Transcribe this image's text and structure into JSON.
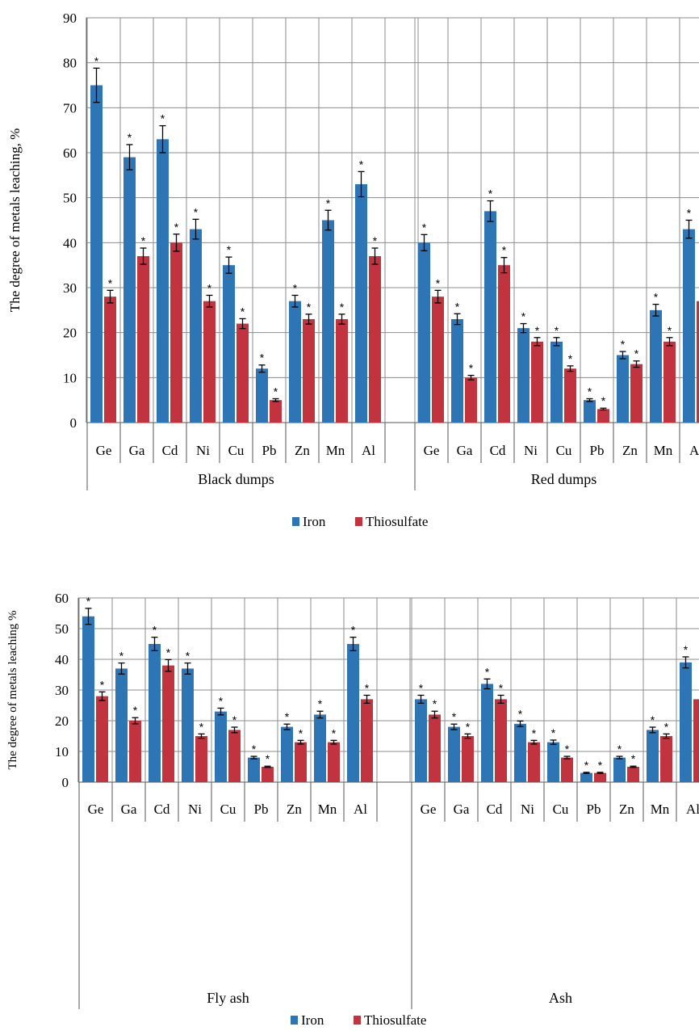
{
  "colors": {
    "iron": "#2e75b6",
    "thiosulfate": "#c0333f",
    "grid": "#8c8c8c",
    "axis": "#555555"
  },
  "chart_data": [
    {
      "type": "bar",
      "ylabel": "The degree of metals leaching, %",
      "ylim": [
        0,
        90
      ],
      "yticks": [
        0,
        10,
        20,
        30,
        40,
        50,
        60,
        70,
        80,
        90
      ],
      "grid": true,
      "legend_position": "bottom",
      "groups": [
        {
          "name": "Black dumps",
          "categories": [
            "Ge",
            "Ga",
            "Cd",
            "Ni",
            "Cu",
            "Pb",
            "Zn",
            "Mn",
            "Al"
          ]
        },
        {
          "name": "Red dumps",
          "categories": [
            "Ge",
            "Ga",
            "Cd",
            "Ni",
            "Cu",
            "Pb",
            "Zn",
            "Mn",
            "Al"
          ]
        }
      ],
      "series": [
        {
          "name": "Iron",
          "values": [
            75,
            59,
            63,
            43,
            35,
            12,
            27,
            45,
            53,
            40,
            23,
            47,
            21,
            18,
            5,
            15,
            25,
            43
          ],
          "errors": [
            3.8,
            2.8,
            3,
            2.2,
            1.8,
            0.8,
            1.3,
            2.2,
            2.8,
            1.8,
            1.2,
            2.3,
            1,
            0.9,
            0.3,
            0.8,
            1.3,
            2
          ]
        },
        {
          "name": "Thiosulfate",
          "values": [
            28,
            37,
            40,
            27,
            22,
            5,
            23,
            23,
            37,
            28,
            10,
            35,
            18,
            12,
            3,
            13,
            18,
            27
          ],
          "errors": [
            1.4,
            1.8,
            1.9,
            1.3,
            1.1,
            0.3,
            1.1,
            1.1,
            1.8,
            1.4,
            0.5,
            1.7,
            0.9,
            0.6,
            0.2,
            0.7,
            0.9,
            1.3
          ]
        }
      ],
      "annotation": "*"
    },
    {
      "type": "bar",
      "ylabel": "The degree of metals leaching %",
      "ylim": [
        0,
        60
      ],
      "yticks": [
        0,
        10,
        20,
        30,
        40,
        50,
        60
      ],
      "grid": true,
      "legend_position": "bottom",
      "groups": [
        {
          "name": "Fly ash",
          "categories": [
            "Ge",
            "Ga",
            "Cd",
            "Ni",
            "Cu",
            "Pb",
            "Zn",
            "Mn",
            "Al"
          ]
        },
        {
          "name": "Ash",
          "categories": [
            "Ge",
            "Ga",
            "Cd",
            "Ni",
            "Cu",
            "Pb",
            "Zn",
            "Mn",
            "Al"
          ]
        }
      ],
      "series": [
        {
          "name": "Iron",
          "values": [
            54,
            37,
            45,
            37,
            23,
            8,
            18,
            22,
            45,
            27,
            18,
            32,
            19,
            13,
            3,
            8,
            17,
            39
          ],
          "errors": [
            2.6,
            1.8,
            2.2,
            1.8,
            1.1,
            0.4,
            0.9,
            1.1,
            2.2,
            1.3,
            0.9,
            1.6,
            0.9,
            0.7,
            0.2,
            0.4,
            0.9,
            1.8
          ]
        },
        {
          "name": "Thiosulfate",
          "values": [
            28,
            20,
            38,
            15,
            17,
            5,
            13,
            13,
            27,
            22,
            15,
            27,
            13,
            8,
            3,
            5,
            15,
            27
          ],
          "errors": [
            1.4,
            1,
            1.9,
            0.7,
            0.9,
            0.2,
            0.6,
            0.6,
            1.3,
            1.1,
            0.7,
            1.3,
            0.6,
            0.4,
            0.2,
            0.2,
            0.7,
            1.3
          ]
        }
      ],
      "annotation": "*"
    }
  ]
}
